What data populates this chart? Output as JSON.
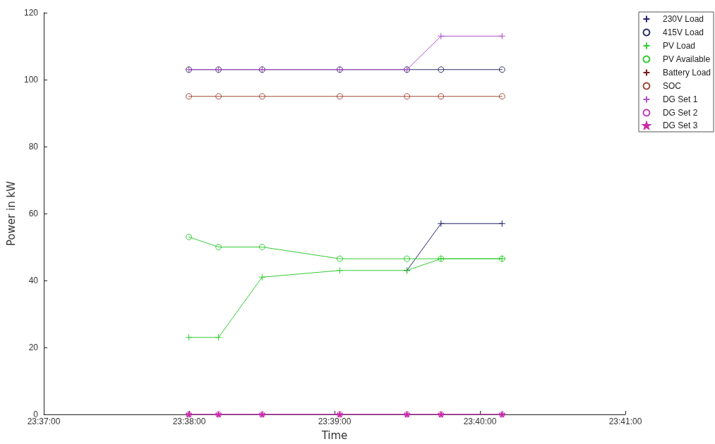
{
  "chart_data": {
    "type": "line",
    "xlabel": "Time",
    "ylabel": "Power in kW",
    "x": [
      23.6333,
      23.6367,
      23.6417,
      23.6506,
      23.6583,
      23.6622,
      23.6692
    ],
    "xlim": [
      23.616667,
      23.683333
    ],
    "xticks": [
      {
        "value": 23.616667,
        "label": "23:37:00"
      },
      {
        "value": 23.633333,
        "label": "23:38:00"
      },
      {
        "value": 23.65,
        "label": "23:39:00"
      },
      {
        "value": 23.666667,
        "label": "23:40:00"
      },
      {
        "value": 23.683333,
        "label": "23:41:00"
      }
    ],
    "ylim": [
      0,
      120
    ],
    "yticks": [
      0,
      20,
      40,
      60,
      80,
      100,
      120
    ],
    "grid": false,
    "legend": "top right",
    "line_style": "solid",
    "series": [
      {
        "name": "230V Load",
        "color": "#22226e",
        "marker": "cross",
        "values": [
          null,
          null,
          null,
          null,
          43,
          57,
          57
        ]
      },
      {
        "name": "415V Load",
        "color": "#2e2e66",
        "marker": "circle",
        "values": [
          103,
          103,
          103,
          103,
          103,
          103,
          103
        ]
      },
      {
        "name": "PV Load",
        "color": "#33cc33",
        "marker": "cross",
        "values": [
          23,
          23,
          41,
          43,
          43,
          46.5,
          46.5
        ]
      },
      {
        "name": "PV Available",
        "color": "#33cc33",
        "marker": "circle",
        "values": [
          53,
          50,
          50,
          46.5,
          46.5,
          46.5,
          46.5
        ]
      },
      {
        "name": "Battery Load",
        "color": "#7a1a1a",
        "marker": "cross",
        "values": [
          null,
          null,
          null,
          null,
          null,
          null,
          null
        ]
      },
      {
        "name": "SOC",
        "color": "#a04a3a",
        "marker": "circle",
        "values": [
          95,
          95,
          95,
          95,
          95,
          95,
          95
        ]
      },
      {
        "name": "DG Set 1",
        "color": "#b050c8",
        "marker": "cross",
        "values": [
          103,
          103,
          103,
          103,
          103,
          113,
          113
        ]
      },
      {
        "name": "DG Set 2",
        "color": "#c040c0",
        "marker": "circle",
        "values": [
          0,
          0,
          0,
          0,
          0,
          0,
          0
        ]
      },
      {
        "name": "DG Set 3",
        "color": "#cc2aa8",
        "marker": "star",
        "values": [
          0,
          0,
          0,
          0,
          0,
          0,
          0
        ]
      }
    ]
  }
}
